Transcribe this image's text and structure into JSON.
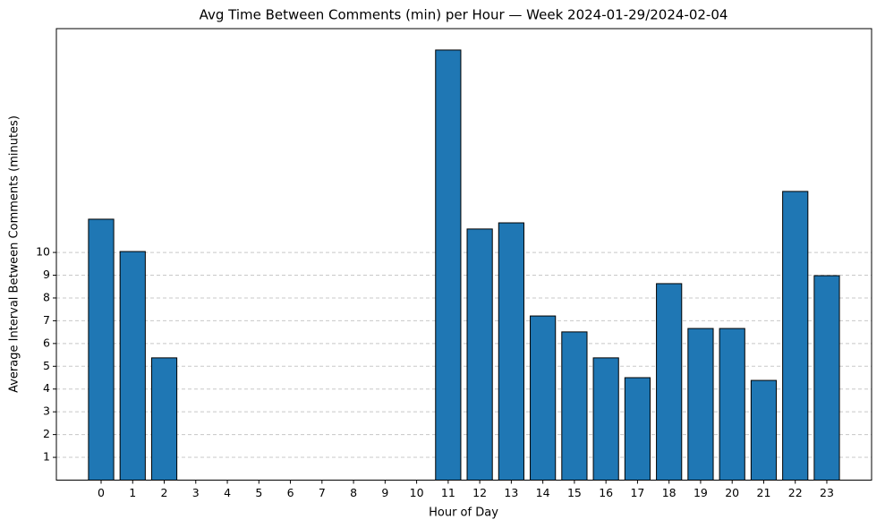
{
  "chart_data": {
    "type": "bar",
    "title": "Avg Time Between Comments (min) per Hour — Week 2024-01-29/2024-02-04",
    "x_label": "Hour of Day",
    "y_label": "Average Interval Between Comments (minutes)",
    "categories": [
      "0",
      "1",
      "2",
      "3",
      "4",
      "5",
      "6",
      "7",
      "8",
      "9",
      "10",
      "11",
      "12",
      "13",
      "14",
      "15",
      "16",
      "17",
      "18",
      "19",
      "20",
      "21",
      "22",
      "23"
    ],
    "values": [
      11.46,
      10.04,
      5.37,
      0,
      0,
      0,
      0,
      0,
      0,
      0,
      0,
      18.89,
      11.03,
      11.3,
      7.21,
      6.51,
      5.37,
      4.5,
      8.63,
      6.66,
      6.66,
      4.38,
      12.68,
      8.98
    ],
    "color": "#1f77b4",
    "ylim": [
      0,
      19.83
    ],
    "yticks": [
      1,
      2,
      3,
      4,
      5,
      6,
      7,
      8,
      9,
      10
    ],
    "grid": true
  }
}
